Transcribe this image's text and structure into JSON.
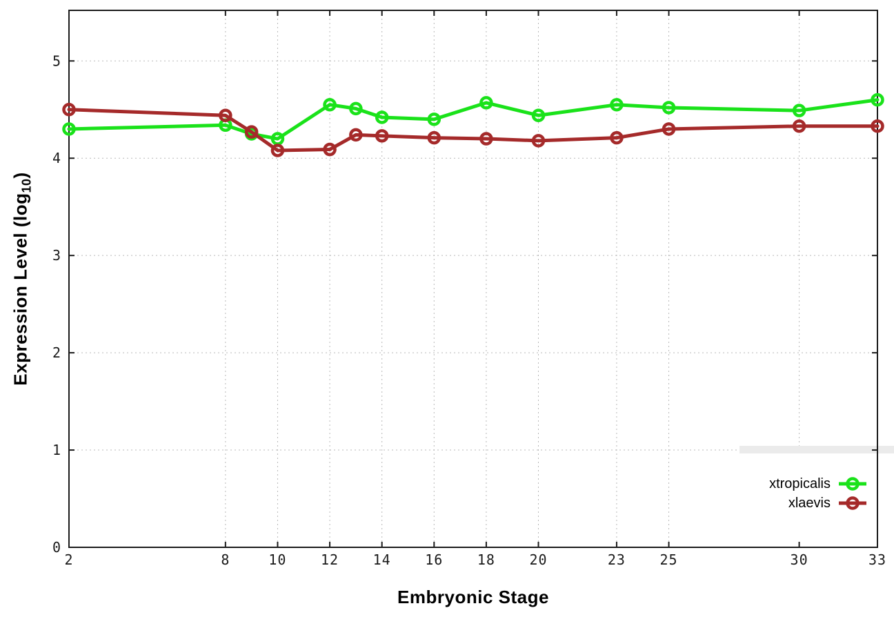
{
  "chart_data": {
    "type": "line",
    "title": "",
    "xlabel": "Embryonic Stage",
    "ylabel": "Expression Level (log10)",
    "ylabel_parts": {
      "main": "Expression Level (log",
      "sub": "10",
      "close": ")"
    },
    "xlim": [
      2,
      33
    ],
    "ylim": [
      0,
      5.52
    ],
    "x_ticks": [
      2,
      8,
      10,
      12,
      14,
      16,
      18,
      20,
      23,
      25,
      30,
      33
    ],
    "y_ticks": [
      0,
      1,
      2,
      3,
      4,
      5
    ],
    "grid": true,
    "legend_position": "inside-bottom-right",
    "x": [
      2,
      8,
      9,
      10,
      12,
      13,
      14,
      16,
      18,
      20,
      23,
      25,
      30,
      33
    ],
    "series": [
      {
        "name": "xtropicalis",
        "color": "#1ae21a",
        "marker": "open-circle",
        "values": [
          4.3,
          4.34,
          4.25,
          4.2,
          4.55,
          4.51,
          4.42,
          4.4,
          4.57,
          4.44,
          4.55,
          4.52,
          4.49,
          4.6
        ]
      },
      {
        "name": "xlaevis",
        "color": "#a52a2a",
        "marker": "open-circle",
        "values": [
          4.5,
          4.44,
          4.27,
          4.08,
          4.09,
          4.24,
          4.23,
          4.21,
          4.2,
          4.18,
          4.21,
          4.3,
          4.33,
          4.33
        ]
      }
    ],
    "colors": {
      "grid": "#b8b8b8",
      "border": "#1a1a1a",
      "tick_label": "#1a1a1a",
      "background": "#ffffff",
      "artifact_band": "#ebebeb"
    }
  }
}
